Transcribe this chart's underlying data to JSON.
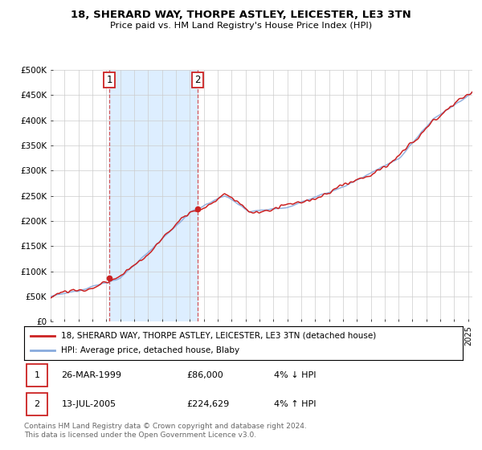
{
  "title1": "18, SHERARD WAY, THORPE ASTLEY, LEICESTER, LE3 3TN",
  "title2": "Price paid vs. HM Land Registry's House Price Index (HPI)",
  "ylabel_ticks": [
    0,
    50000,
    100000,
    150000,
    200000,
    250000,
    300000,
    350000,
    400000,
    450000,
    500000
  ],
  "ylabel_labels": [
    "£0",
    "£50K",
    "£100K",
    "£150K",
    "£200K",
    "£250K",
    "£300K",
    "£350K",
    "£400K",
    "£450K",
    "£500K"
  ],
  "ylim": [
    0,
    500000
  ],
  "hpi_color": "#88aadd",
  "price_color": "#cc2222",
  "marker1_year": 1999.23,
  "marker1_price": 86000,
  "marker2_year": 2005.54,
  "marker2_price": 224629,
  "legend_line1": "18, SHERARD WAY, THORPE ASTLEY, LEICESTER, LE3 3TN (detached house)",
  "legend_line2": "HPI: Average price, detached house, Blaby",
  "table_row1_num": "1",
  "table_row1_date": "26-MAR-1999",
  "table_row1_price": "£86,000",
  "table_row1_hpi": "4% ↓ HPI",
  "table_row2_num": "2",
  "table_row2_date": "13-JUL-2005",
  "table_row2_price": "£224,629",
  "table_row2_hpi": "4% ↑ HPI",
  "footer": "Contains HM Land Registry data © Crown copyright and database right 2024.\nThis data is licensed under the Open Government Licence v3.0.",
  "shade_color": "#ddeeff",
  "grid_color": "#cccccc",
  "bg_color": "#ffffff",
  "xmin": 1995,
  "xmax": 2025.3
}
